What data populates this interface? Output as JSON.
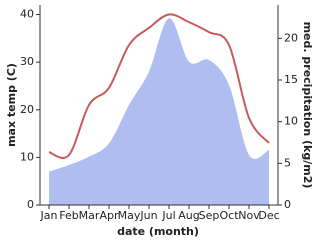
{
  "chart_data": {
    "type": "line",
    "x_label": "date (month)",
    "y_label": "max temp (C)",
    "y2_label": "med. precipitation (kg/m2)",
    "categories": [
      "Jan",
      "Feb",
      "Mar",
      "Apr",
      "May",
      "Jun",
      "Jul",
      "Aug",
      "Sep",
      "Oct",
      "Nov",
      "Dec"
    ],
    "ylim": [
      0,
      42
    ],
    "yticks": [
      0,
      10,
      20,
      30,
      40
    ],
    "y2lim": [
      0,
      24
    ],
    "y2ticks": [
      0,
      5,
      10,
      15,
      20
    ],
    "series": [
      {
        "name": "max temp",
        "color": "#c85a5a",
        "kind": "line",
        "values": [
          11.1,
          10.5,
          21,
          24.6,
          33.6,
          37.2,
          40,
          38.4,
          36.3,
          33.6,
          18.3,
          13
        ]
      },
      {
        "name": "precipitation",
        "color": "#b0bdf0",
        "kind": "area",
        "axis": "y2",
        "values": [
          4,
          4.8,
          5.8,
          7.4,
          12,
          16,
          22.4,
          17.2,
          17.4,
          14.4,
          6,
          6.6
        ]
      }
    ]
  }
}
